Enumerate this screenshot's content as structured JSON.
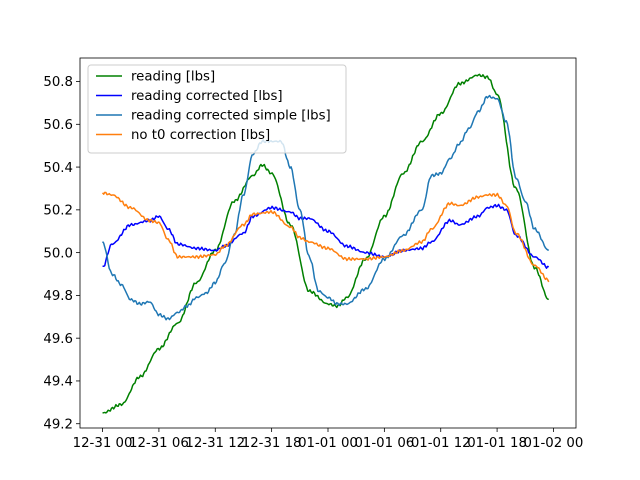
{
  "chart_data": {
    "type": "line",
    "title": "",
    "xlabel": "",
    "ylabel": "",
    "x_tick_labels": [
      "12-31 00",
      "12-31 06",
      "12-31 12",
      "12-31 18",
      "01-01 00",
      "01-01 06",
      "01-01 12",
      "01-01 18",
      "01-02 00"
    ],
    "y_tick_labels": [
      "49.2",
      "49.4",
      "49.6",
      "49.8",
      "50.0",
      "50.2",
      "50.4",
      "50.6",
      "50.8"
    ],
    "y_ticks": [
      49.2,
      49.4,
      49.6,
      49.8,
      50.0,
      50.2,
      50.4,
      50.6,
      50.8
    ],
    "xlim": [
      "12-30 21:36",
      "01-02 02:24"
    ],
    "ylim": [
      49.18,
      50.91
    ],
    "grid": false,
    "legend_position": "top-left",
    "series": [
      {
        "name": "reading [lbs]",
        "color": "#008000",
        "points": [
          [
            "12-31 00:00",
            49.25
          ],
          [
            "12-31 02:00",
            49.29
          ],
          [
            "12-31 04:00",
            49.42
          ],
          [
            "12-31 06:00",
            49.55
          ],
          [
            "12-31 08:00",
            49.67
          ],
          [
            "12-31 10:00",
            49.86
          ],
          [
            "12-31 12:00",
            50.01
          ],
          [
            "12-31 14:00",
            50.24
          ],
          [
            "12-31 16:00",
            50.36
          ],
          [
            "12-31 17:00",
            50.41
          ],
          [
            "12-31 18:00",
            50.37
          ],
          [
            "12-31 20:00",
            50.13
          ],
          [
            "12-31 22:00",
            49.82
          ],
          [
            "01-01 00:00",
            49.76
          ],
          [
            "01-01 01:00",
            49.75
          ],
          [
            "01-01 02:00",
            49.79
          ],
          [
            "01-01 04:00",
            49.97
          ],
          [
            "01-01 06:00",
            50.17
          ],
          [
            "01-01 08:00",
            50.37
          ],
          [
            "01-01 10:00",
            50.52
          ],
          [
            "01-01 12:00",
            50.65
          ],
          [
            "01-01 14:00",
            50.79
          ],
          [
            "01-01 16:00",
            50.83
          ],
          [
            "01-01 17:00",
            50.82
          ],
          [
            "01-01 18:00",
            50.74
          ],
          [
            "01-01 20:00",
            50.3
          ],
          [
            "01-01 22:00",
            49.93
          ],
          [
            "01-01 23:30",
            49.78
          ]
        ]
      },
      {
        "name": "reading corrected [lbs]",
        "color": "#0000ff",
        "points": [
          [
            "12-31 00:00",
            49.93
          ],
          [
            "12-31 01:00",
            50.04
          ],
          [
            "12-31 03:00",
            50.13
          ],
          [
            "12-31 05:00",
            50.15
          ],
          [
            "12-31 06:00",
            50.17
          ],
          [
            "12-31 07:00",
            50.11
          ],
          [
            "12-31 08:00",
            50.04
          ],
          [
            "12-31 10:00",
            50.02
          ],
          [
            "12-31 12:00",
            50.01
          ],
          [
            "12-31 13:00",
            50.03
          ],
          [
            "12-31 15:00",
            50.09
          ],
          [
            "12-31 16:00",
            50.17
          ],
          [
            "12-31 18:00",
            50.21
          ],
          [
            "12-31 20:00",
            50.19
          ],
          [
            "12-31 21:00",
            50.16
          ],
          [
            "12-31 22:00",
            50.16
          ],
          [
            "01-01 00:00",
            50.1
          ],
          [
            "01-01 02:00",
            50.03
          ],
          [
            "01-01 04:00",
            50.0
          ],
          [
            "01-01 06:00",
            49.98
          ],
          [
            "01-01 08:00",
            50.01
          ],
          [
            "01-01 10:00",
            50.02
          ],
          [
            "01-01 11:00",
            50.05
          ],
          [
            "01-01 13:00",
            50.15
          ],
          [
            "01-01 14:00",
            50.13
          ],
          [
            "01-01 16:00",
            50.17
          ],
          [
            "01-01 17:00",
            50.21
          ],
          [
            "01-01 18:00",
            50.22
          ],
          [
            "01-01 19:00",
            50.2
          ],
          [
            "01-01 20:00",
            50.08
          ],
          [
            "01-01 22:00",
            49.98
          ],
          [
            "01-01 23:30",
            49.93
          ]
        ]
      },
      {
        "name": "reading corrected simple [lbs]",
        "color": "#1f77b4",
        "points": [
          [
            "12-31 00:00",
            50.05
          ],
          [
            "12-31 01:00",
            49.9
          ],
          [
            "12-31 02:00",
            49.85
          ],
          [
            "12-31 03:00",
            49.78
          ],
          [
            "12-31 04:00",
            49.76
          ],
          [
            "12-31 05:00",
            49.77
          ],
          [
            "12-31 06:00",
            49.71
          ],
          [
            "12-31 07:00",
            49.69
          ],
          [
            "12-31 08:00",
            49.72
          ],
          [
            "12-31 09:00",
            49.75
          ],
          [
            "12-31 10:00",
            49.79
          ],
          [
            "12-31 11:00",
            49.81
          ],
          [
            "12-31 12:00",
            49.86
          ],
          [
            "12-31 13:00",
            49.95
          ],
          [
            "12-31 14:00",
            50.08
          ],
          [
            "12-31 15:00",
            50.27
          ],
          [
            "12-31 16:00",
            50.46
          ],
          [
            "12-31 17:00",
            50.52
          ],
          [
            "12-31 18:00",
            50.52
          ],
          [
            "12-31 19:00",
            50.52
          ],
          [
            "12-31 20:00",
            50.4
          ],
          [
            "12-31 21:00",
            50.2
          ],
          [
            "12-31 22:00",
            49.98
          ],
          [
            "12-31 23:00",
            49.82
          ],
          [
            "01-01 00:00",
            49.79
          ],
          [
            "01-01 01:00",
            49.76
          ],
          [
            "01-01 02:00",
            49.76
          ],
          [
            "01-01 04:00",
            49.83
          ],
          [
            "01-01 06:00",
            49.97
          ],
          [
            "01-01 08:00",
            50.08
          ],
          [
            "01-01 10:00",
            50.2
          ],
          [
            "01-01 11:00",
            50.36
          ],
          [
            "01-01 12:00",
            50.37
          ],
          [
            "01-01 13:00",
            50.44
          ],
          [
            "01-01 14:00",
            50.51
          ],
          [
            "01-01 15:00",
            50.58
          ],
          [
            "01-01 16:00",
            50.66
          ],
          [
            "01-01 17:00",
            50.73
          ],
          [
            "01-01 18:00",
            50.72
          ],
          [
            "01-01 19:00",
            50.61
          ],
          [
            "01-01 20:00",
            50.35
          ],
          [
            "01-01 21:00",
            50.24
          ],
          [
            "01-01 22:00",
            50.11
          ],
          [
            "01-01 23:30",
            50.01
          ]
        ]
      },
      {
        "name": "no t0 correction [lbs]",
        "color": "#ff7f0e",
        "points": [
          [
            "12-31 00:00",
            50.28
          ],
          [
            "12-31 01:00",
            50.27
          ],
          [
            "12-31 03:00",
            50.21
          ],
          [
            "12-31 05:00",
            50.15
          ],
          [
            "12-31 06:00",
            50.14
          ],
          [
            "12-31 07:00",
            50.06
          ],
          [
            "12-31 08:00",
            49.98
          ],
          [
            "12-31 10:00",
            49.98
          ],
          [
            "12-31 12:00",
            49.99
          ],
          [
            "12-31 13:00",
            50.03
          ],
          [
            "12-31 15:00",
            50.13
          ],
          [
            "12-31 16:00",
            50.18
          ],
          [
            "12-31 18:00",
            50.19
          ],
          [
            "12-31 20:00",
            50.12
          ],
          [
            "12-31 21:00",
            50.07
          ],
          [
            "12-31 22:00",
            50.05
          ],
          [
            "01-01 00:00",
            50.02
          ],
          [
            "01-01 02:00",
            49.97
          ],
          [
            "01-01 04:00",
            49.97
          ],
          [
            "01-01 06:00",
            49.98
          ],
          [
            "01-01 08:00",
            50.01
          ],
          [
            "01-01 10:00",
            50.05
          ],
          [
            "01-01 11:00",
            50.11
          ],
          [
            "01-01 13:00",
            50.23
          ],
          [
            "01-01 14:00",
            50.22
          ],
          [
            "01-01 16:00",
            50.26
          ],
          [
            "01-01 17:00",
            50.27
          ],
          [
            "01-01 18:00",
            50.27
          ],
          [
            "01-01 19:00",
            50.22
          ],
          [
            "01-01 20:00",
            50.09
          ],
          [
            "01-01 22:00",
            49.94
          ],
          [
            "01-01 23:30",
            49.87
          ]
        ]
      }
    ]
  }
}
